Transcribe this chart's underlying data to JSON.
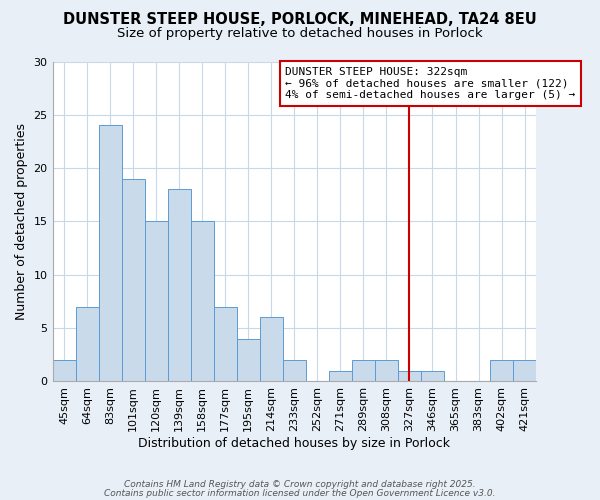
{
  "title": "DUNSTER STEEP HOUSE, PORLOCK, MINEHEAD, TA24 8EU",
  "subtitle": "Size of property relative to detached houses in Porlock",
  "xlabel": "Distribution of detached houses by size in Porlock",
  "ylabel": "Number of detached properties",
  "bar_labels": [
    "45sqm",
    "64sqm",
    "83sqm",
    "101sqm",
    "120sqm",
    "139sqm",
    "158sqm",
    "177sqm",
    "195sqm",
    "214sqm",
    "233sqm",
    "252sqm",
    "271sqm",
    "289sqm",
    "308sqm",
    "327sqm",
    "346sqm",
    "365sqm",
    "383sqm",
    "402sqm",
    "421sqm"
  ],
  "bar_values": [
    2,
    7,
    24,
    19,
    15,
    18,
    15,
    7,
    4,
    6,
    2,
    0,
    1,
    2,
    2,
    1,
    1,
    0,
    0,
    2,
    2
  ],
  "bar_color": "#c9daea",
  "bar_edge_color": "#5b9bd5",
  "ylim": [
    0,
    30
  ],
  "yticks": [
    0,
    5,
    10,
    15,
    20,
    25,
    30
  ],
  "vline_x": 15.0,
  "vline_color": "#cc0000",
  "annotation_title": "DUNSTER STEEP HOUSE: 322sqm",
  "annotation_line1": "← 96% of detached houses are smaller (122)",
  "annotation_line2": "4% of semi-detached houses are larger (5) →",
  "annotation_border_color": "#cc0000",
  "plot_bg_color": "#ffffff",
  "fig_bg_color": "#e8eff7",
  "footnote_line1": "Contains HM Land Registry data © Crown copyright and database right 2025.",
  "footnote_line2": "Contains public sector information licensed under the Open Government Licence v3.0.",
  "title_fontsize": 10.5,
  "subtitle_fontsize": 9.5,
  "axis_label_fontsize": 9,
  "tick_fontsize": 8,
  "annotation_fontsize": 8,
  "footnote_fontsize": 6.5
}
